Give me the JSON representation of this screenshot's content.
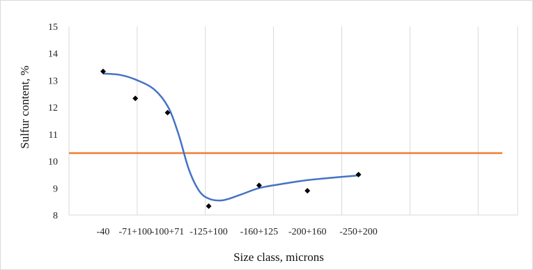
{
  "chart_data": {
    "type": "scatter",
    "title": "",
    "xlabel": "Size class, microns",
    "ylabel": "Sulfur content, %",
    "categories": [
      "-40",
      "-71+100",
      "-100+71",
      "-125+100",
      "-160+125",
      "-200+160",
      "-250+200"
    ],
    "y_ticks": [
      "8",
      "9",
      "10",
      "11",
      "12",
      "13",
      "14",
      "15"
    ],
    "ylim": [
      8,
      15
    ],
    "grid": "vertical",
    "legend": "none",
    "points": [
      {
        "x": 0.0,
        "y": 13.33
      },
      {
        "x": 0.94,
        "y": 12.33
      },
      {
        "x": 1.88,
        "y": 11.8
      },
      {
        "x": 3.08,
        "y": 8.33
      },
      {
        "x": 4.55,
        "y": 9.1
      },
      {
        "x": 5.96,
        "y": 8.9
      },
      {
        "x": 7.45,
        "y": 9.5
      }
    ],
    "trend_curve": [
      {
        "x": 0.0,
        "y": 13.25
      },
      {
        "x": 0.5,
        "y": 13.2
      },
      {
        "x": 1.0,
        "y": 13.0
      },
      {
        "x": 1.5,
        "y": 12.65
      },
      {
        "x": 1.9,
        "y": 12.0
      },
      {
        "x": 2.2,
        "y": 11.0
      },
      {
        "x": 2.5,
        "y": 9.7
      },
      {
        "x": 2.8,
        "y": 8.9
      },
      {
        "x": 3.1,
        "y": 8.6
      },
      {
        "x": 3.5,
        "y": 8.55
      },
      {
        "x": 4.0,
        "y": 8.75
      },
      {
        "x": 4.55,
        "y": 9.0
      },
      {
        "x": 5.2,
        "y": 9.15
      },
      {
        "x": 6.0,
        "y": 9.3
      },
      {
        "x": 7.0,
        "y": 9.42
      },
      {
        "x": 7.45,
        "y": 9.47
      }
    ],
    "reference_line": {
      "y": 10.3
    },
    "colors": {
      "curve": "#4472c4",
      "reference": "#ed7d31",
      "marker": "#000000",
      "grid": "#d9d9d9"
    }
  }
}
